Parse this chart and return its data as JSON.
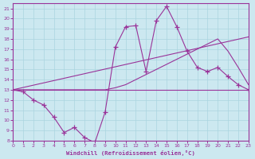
{
  "xlabel": "Windchill (Refroidissement éolien,°C)",
  "background_color": "#cce8f0",
  "line_color": "#993399",
  "grid_color": "#aad4e0",
  "xlim": [
    0,
    23
  ],
  "ylim": [
    8,
    21.5
  ],
  "xticks": [
    0,
    1,
    2,
    3,
    4,
    5,
    6,
    7,
    8,
    9,
    10,
    11,
    12,
    13,
    14,
    15,
    16,
    17,
    18,
    19,
    20,
    21,
    22,
    23
  ],
  "yticks": [
    8,
    9,
    10,
    11,
    12,
    13,
    14,
    15,
    16,
    17,
    18,
    19,
    20,
    21
  ],
  "line1_x": [
    0,
    1,
    2,
    3,
    4,
    5,
    6,
    7,
    8,
    9,
    10,
    11,
    12,
    13,
    14,
    15,
    16,
    17,
    18,
    19,
    20,
    21,
    22,
    23
  ],
  "line1_y": [
    13.0,
    12.8,
    12.0,
    11.5,
    10.3,
    8.8,
    9.3,
    8.3,
    7.8,
    10.8,
    17.2,
    19.2,
    19.3,
    14.8,
    19.8,
    21.2,
    19.2,
    16.8,
    15.2,
    14.8,
    15.2,
    14.3,
    13.5,
    13.0
  ],
  "line2_x": [
    0,
    23
  ],
  "line2_y": [
    13.0,
    13.0
  ],
  "line3_x": [
    0,
    23
  ],
  "line3_y": [
    13.0,
    18.2
  ],
  "line4_x": [
    0,
    1,
    2,
    3,
    4,
    5,
    6,
    7,
    8,
    9,
    10,
    11,
    12,
    13,
    14,
    15,
    16,
    17,
    18,
    19,
    20,
    21,
    22,
    23
  ],
  "line4_y": [
    13.0,
    13.0,
    13.0,
    13.0,
    13.0,
    13.0,
    13.0,
    13.0,
    13.0,
    13.0,
    13.2,
    13.5,
    14.0,
    14.5,
    15.0,
    15.5,
    16.0,
    16.5,
    17.0,
    17.5,
    18.0,
    16.8,
    15.2,
    13.5
  ]
}
